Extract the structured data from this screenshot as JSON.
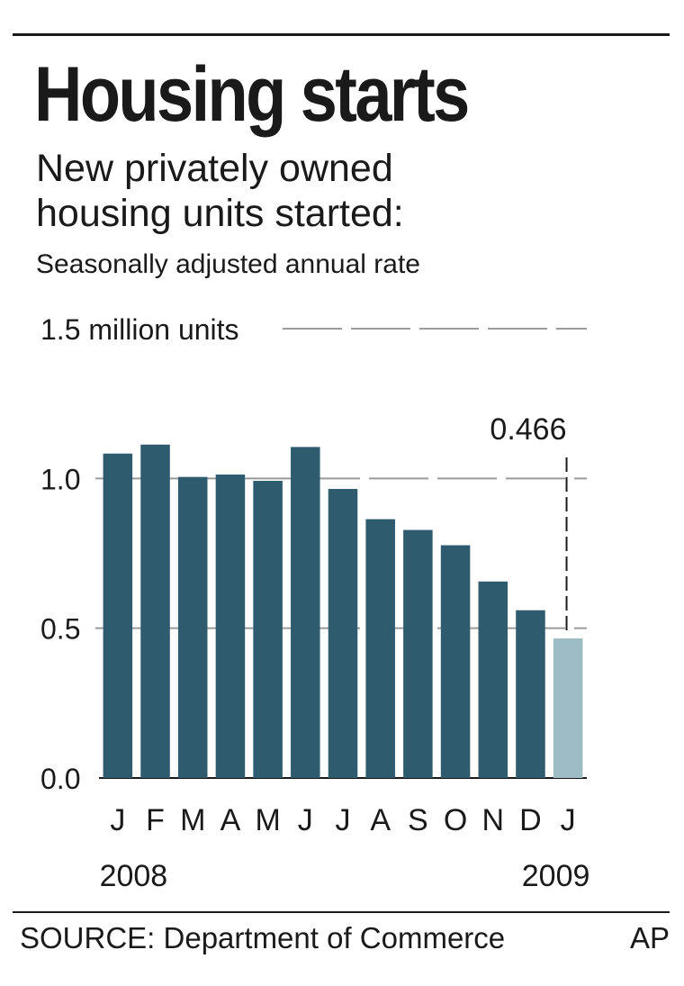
{
  "header": {
    "title": "Housing starts",
    "subtitle_line1": "New privately owned",
    "subtitle_line2": "housing units started:",
    "note": "Seasonally adjusted annual rate"
  },
  "chart_data": {
    "type": "bar",
    "categories": [
      "J",
      "F",
      "M",
      "A",
      "M",
      "J",
      "J",
      "A",
      "S",
      "O",
      "N",
      "D",
      "J"
    ],
    "values": [
      1.083,
      1.113,
      1.005,
      1.013,
      0.992,
      1.105,
      0.965,
      0.864,
      0.828,
      0.777,
      0.656,
      0.56,
      0.466
    ],
    "year_labels": [
      {
        "label": "2008",
        "index": 0
      },
      {
        "label": "2009",
        "index": 12
      }
    ],
    "y_ticks": [
      {
        "value": 0.0,
        "label": "0.0"
      },
      {
        "value": 0.5,
        "label": "0.5"
      },
      {
        "value": 1.0,
        "label": "1.0"
      },
      {
        "value": 1.5,
        "label": "1.5 million units"
      }
    ],
    "ylim": [
      0,
      1.5
    ],
    "grid": true,
    "highlight": {
      "index": 12,
      "label": "0.466"
    },
    "colors": {
      "bar": "#2f5b6f",
      "highlight": "#9dbcc6",
      "grid": "#9a9a9a"
    }
  },
  "footer": {
    "source": "SOURCE: Department of Commerce",
    "credit": "AP"
  }
}
